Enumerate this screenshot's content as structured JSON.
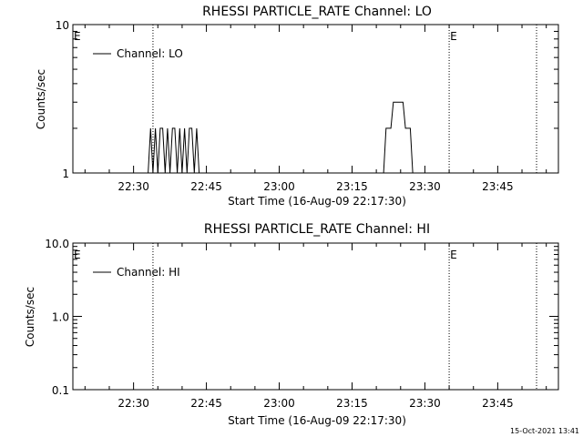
{
  "chart_data": [
    {
      "type": "line",
      "title": "RHESSI  PARTICLE_RATE  Channel:  LO",
      "xlabel": "Start Time (16-Aug-09 22:17:30)",
      "ylabel": "Counts/sec",
      "yscale": "log",
      "ylim": [
        1,
        10
      ],
      "xlim": [
        "22:17:30",
        "23:57:30"
      ],
      "xticks": [
        "22:30",
        "22:45",
        "23:00",
        "23:15",
        "23:30",
        "23:45"
      ],
      "yticks": [
        "1",
        "10"
      ],
      "legend": {
        "label": "Channel: LO",
        "position": "top-left"
      },
      "event_markers": [
        {
          "time": "22:34:00",
          "label": "E"
        },
        {
          "time": "23:35:00",
          "label": ""
        },
        {
          "time": "23:53:00",
          "label": ""
        }
      ],
      "edge_labels": [
        {
          "label": "E",
          "side": "left"
        },
        {
          "label": "E",
          "side": "dotted-2"
        }
      ],
      "series": [
        {
          "name": "Channel: LO",
          "points": [
            [
              "22:33:00",
              1
            ],
            [
              "22:33:30",
              2
            ],
            [
              "22:34:00",
              1
            ],
            [
              "22:34:30",
              2
            ],
            [
              "22:35:00",
              1
            ],
            [
              "22:35:30",
              2
            ],
            [
              "22:36:00",
              2
            ],
            [
              "22:36:30",
              1
            ],
            [
              "22:37:00",
              2
            ],
            [
              "22:37:30",
              1
            ],
            [
              "22:38:00",
              2
            ],
            [
              "22:38:30",
              2
            ],
            [
              "22:39:00",
              1
            ],
            [
              "22:39:30",
              2
            ],
            [
              "22:40:00",
              1
            ],
            [
              "22:40:30",
              2
            ],
            [
              "22:41:00",
              1
            ],
            [
              "22:41:30",
              2
            ],
            [
              "22:42:00",
              2
            ],
            [
              "22:42:30",
              1
            ],
            [
              "22:43:00",
              2
            ],
            [
              "22:43:30",
              1
            ],
            [
              "23:21:30",
              1
            ],
            [
              "23:22:00",
              2
            ],
            [
              "23:23:00",
              2
            ],
            [
              "23:23:30",
              3
            ],
            [
              "23:25:30",
              3
            ],
            [
              "23:26:00",
              2
            ],
            [
              "23:27:00",
              2
            ],
            [
              "23:27:30",
              1
            ]
          ]
        }
      ]
    },
    {
      "type": "line",
      "title": "RHESSI  PARTICLE_RATE  Channel:  HI",
      "xlabel": "Start Time (16-Aug-09 22:17:30)",
      "ylabel": "Counts/sec",
      "yscale": "log",
      "ylim": [
        0.1,
        10
      ],
      "xlim": [
        "22:17:30",
        "23:57:30"
      ],
      "xticks": [
        "22:30",
        "22:45",
        "23:00",
        "23:15",
        "23:30",
        "23:45"
      ],
      "yticks": [
        "0.1",
        "1.0",
        "10.0"
      ],
      "legend": {
        "label": "Channel: HI",
        "position": "top-left"
      },
      "event_markers": [
        {
          "time": "22:34:00",
          "label": "E"
        },
        {
          "time": "23:35:00",
          "label": ""
        },
        {
          "time": "23:53:00",
          "label": ""
        }
      ],
      "edge_labels": [
        {
          "label": "E",
          "side": "left"
        },
        {
          "label": "E",
          "side": "dotted-2"
        }
      ],
      "series": [
        {
          "name": "Channel: HI",
          "points": []
        }
      ]
    }
  ],
  "footer": {
    "timestamp": "15-Oct-2021 13:41"
  }
}
